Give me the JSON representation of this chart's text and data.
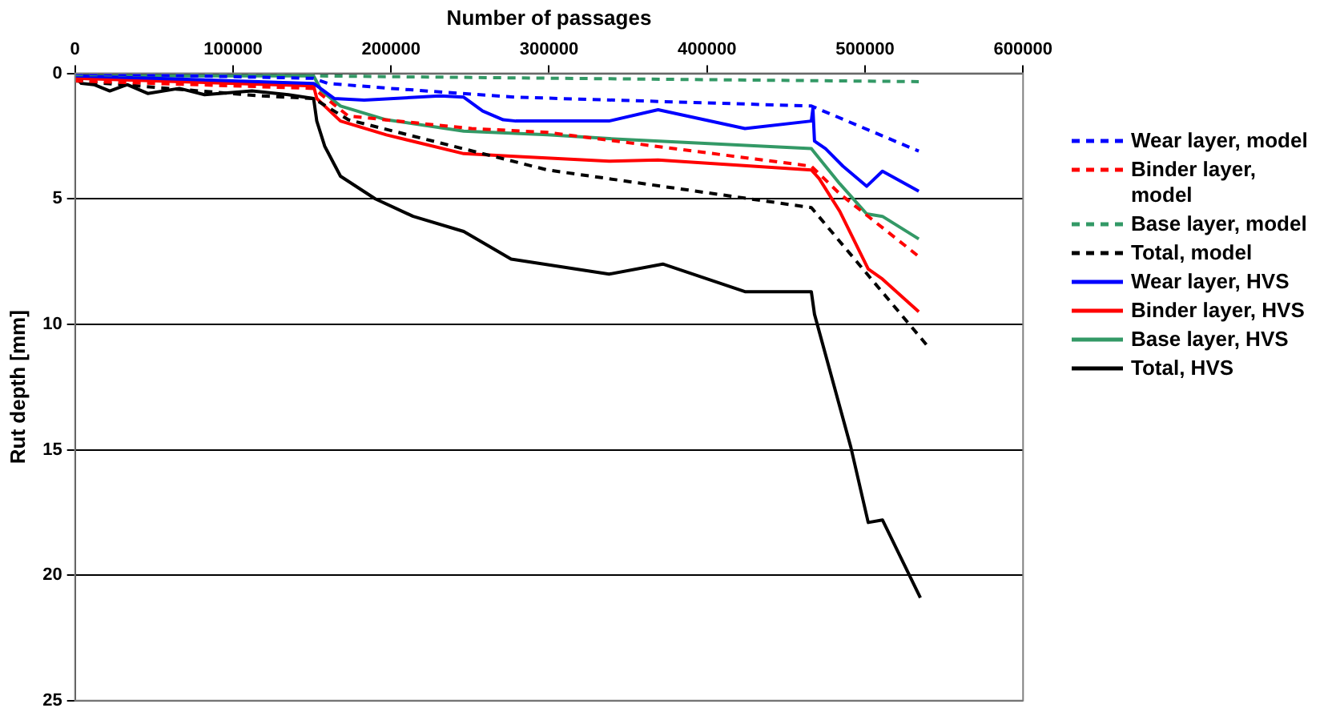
{
  "chart_data": {
    "type": "line",
    "xlabel": "Number of passages",
    "ylabel": "Rut depth [mm]",
    "xlim": [
      0,
      600000
    ],
    "xticks": [
      0,
      100000,
      200000,
      300000,
      400000,
      500000,
      600000
    ],
    "ylim": [
      25,
      0
    ],
    "yticks": [
      0,
      5,
      10,
      15,
      20,
      25
    ],
    "grid": "y",
    "legend": "right",
    "marker": "none",
    "series": [
      {
        "name": "Wear layer, model",
        "color": "#0000ff",
        "line_style": "dashed",
        "x": [
          0,
          151000,
          160000,
          200000,
          279000,
          466000,
          534000
        ],
        "values": [
          0,
          0.2,
          0.4,
          0.6,
          0.95,
          1.3,
          3.1
        ]
      },
      {
        "name": "Binder layer, model",
        "color": "#ff0000",
        "line_style": "dashed",
        "x": [
          0,
          151000,
          173000,
          251000,
          299000,
          466000,
          484000,
          534000
        ],
        "values": [
          0.3,
          0.6,
          1.7,
          2.2,
          2.35,
          3.7,
          4.8,
          7.3
        ]
      },
      {
        "name": "Base layer, model",
        "color": "#339966",
        "line_style": "dashed",
        "x": [
          0,
          151000,
          279000,
          534000
        ],
        "values": [
          0.05,
          0.1,
          0.18,
          0.33
        ]
      },
      {
        "name": "Total, model",
        "color": "#000000",
        "line_style": "dashed",
        "x": [
          0,
          118000,
          151000,
          173000,
          299000,
          466000,
          540000
        ],
        "values": [
          0.3,
          0.9,
          1.0,
          1.85,
          3.85,
          5.35,
          10.9
        ]
      },
      {
        "name": "Wear layer, HVS",
        "color": "#0000ff",
        "line_style": "solid",
        "x": [
          0,
          151000,
          164000,
          183000,
          231000,
          246000,
          258000,
          271000,
          279000,
          338000,
          369000,
          424000,
          466000,
          467000,
          468000,
          475000,
          486000,
          501000,
          511000,
          534000
        ],
        "values": [
          0.1,
          0.4,
          1.0,
          1.07,
          0.9,
          0.95,
          1.5,
          1.85,
          1.9,
          1.9,
          1.45,
          2.2,
          1.9,
          1.4,
          2.7,
          3.0,
          3.7,
          4.5,
          3.9,
          4.7
        ]
      },
      {
        "name": "Binder layer, HVS",
        "color": "#ff0000",
        "line_style": "solid",
        "x": [
          0,
          151000,
          153000,
          168000,
          197000,
          246000,
          276000,
          338000,
          369000,
          466000,
          471000,
          484000,
          502000,
          511000,
          534000
        ],
        "values": [
          0.2,
          0.5,
          1.0,
          1.9,
          2.45,
          3.2,
          3.3,
          3.5,
          3.45,
          3.85,
          4.2,
          5.5,
          7.8,
          8.2,
          9.5
        ]
      },
      {
        "name": "Base layer, HVS",
        "color": "#339966",
        "line_style": "solid",
        "x": [
          0,
          151000,
          156000,
          168000,
          197000,
          246000,
          299000,
          338000,
          466000,
          484000,
          501000,
          511000,
          534000
        ],
        "values": [
          0.1,
          0.1,
          0.7,
          1.3,
          1.85,
          2.3,
          2.45,
          2.6,
          3.0,
          4.4,
          5.6,
          5.7,
          6.6
        ]
      },
      {
        "name": "Total, HVS",
        "color": "#000000",
        "line_style": "solid",
        "x": [
          0,
          4000,
          12000,
          22000,
          33000,
          46000,
          66000,
          82000,
          112000,
          135000,
          151000,
          153000,
          158000,
          168000,
          190000,
          214000,
          246000,
          276000,
          338000,
          372000,
          424000,
          466000,
          468000,
          491000,
          502000,
          511000,
          535000
        ],
        "values": [
          0.1,
          0.4,
          0.45,
          0.7,
          0.45,
          0.8,
          0.6,
          0.85,
          0.7,
          0.85,
          1.0,
          1.9,
          2.9,
          4.1,
          5.0,
          5.7,
          6.3,
          7.4,
          8.0,
          7.6,
          8.7,
          8.7,
          9.6,
          14.9,
          17.9,
          17.8,
          20.9
        ]
      }
    ]
  }
}
